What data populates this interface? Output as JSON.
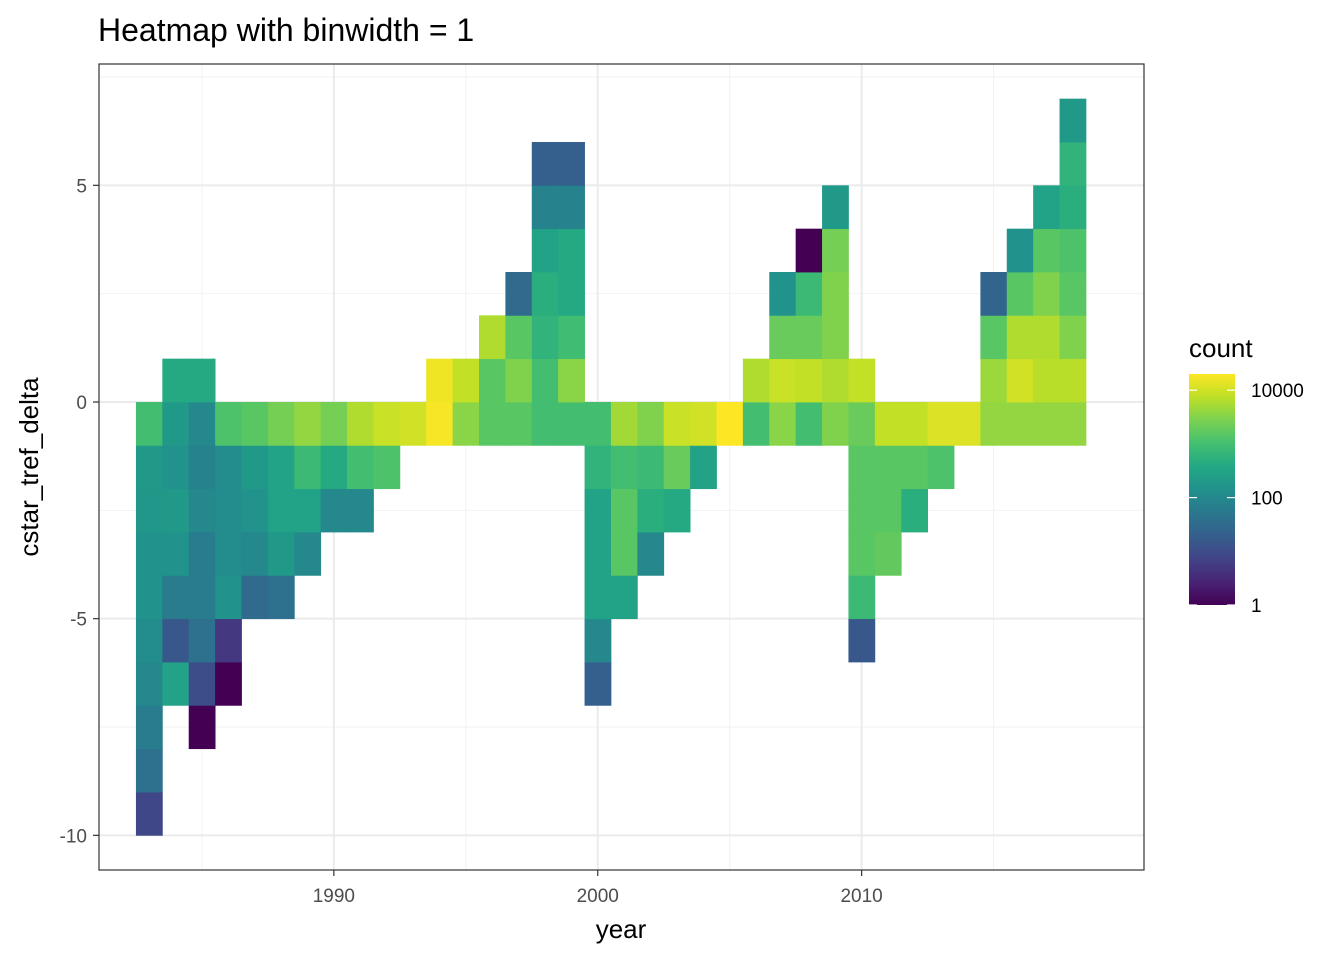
{
  "chart_data": {
    "type": "heatmap",
    "title": "Heatmap with binwidth = 1",
    "xlabel": "year",
    "ylabel": "cstar_tref_delta",
    "xlim": [
      1981.1,
      2020.7
    ],
    "ylim": [
      -10.8,
      7.8
    ],
    "x_ticks": [
      {
        "value": 1990,
        "label": "1990"
      },
      {
        "value": 2000,
        "label": "2000"
      },
      {
        "value": 2010,
        "label": "2010"
      }
    ],
    "y_ticks": [
      {
        "value": 5,
        "label": "5"
      },
      {
        "value": 0,
        "label": "0"
      },
      {
        "value": -5,
        "label": "-5"
      },
      {
        "value": -10,
        "label": "-10"
      }
    ],
    "legend": {
      "title": "count",
      "position": "right",
      "scale": "log10",
      "range": [
        1,
        20000
      ],
      "breaks": [
        {
          "value": 10000,
          "label": "10000"
        },
        {
          "value": 100,
          "label": "100"
        },
        {
          "value": 1,
          "label": "1"
        }
      ],
      "colormap": "viridis"
    },
    "binwidth": 1,
    "bin_x_start": 1982.5,
    "bin_y_start": -10,
    "columns": [
      {
        "x": 1982.5,
        "y0": -10,
        "counts": [
          8,
          40,
          60,
          100,
          120,
          150,
          150,
          180,
          200,
          1000
        ]
      },
      {
        "x": 1983.5,
        "y0": -7,
        "counts": [
          300,
          15,
          60,
          150,
          200,
          150,
          200,
          400
        ]
      },
      {
        "x": 1984.5,
        "y0": -8,
        "counts": [
          1,
          10,
          40,
          60,
          60,
          100,
          80,
          100,
          400
        ]
      },
      {
        "x": 1985.5,
        "y0": -7,
        "counts": [
          1,
          5,
          150,
          120,
          120,
          120,
          1200
        ]
      },
      {
        "x": 1986.5,
        "y0": -5,
        "counts": [
          30,
          100,
          150,
          200,
          1500
        ]
      },
      {
        "x": 1987.5,
        "y0": -5,
        "counts": [
          40,
          200,
          300,
          300,
          2500
        ]
      },
      {
        "x": 1988.5,
        "y0": -4,
        "counts": [
          100,
          300,
          800,
          4000
        ]
      },
      {
        "x": 1989.5,
        "y0": -3,
        "counts": [
          100,
          400,
          2500
        ]
      },
      {
        "x": 1990.5,
        "y0": -3,
        "counts": [
          100,
          1000,
          6000
        ]
      },
      {
        "x": 1991.5,
        "y0": -2,
        "counts": [
          1200,
          9000
        ]
      },
      {
        "x": 1992.5,
        "y0": -1,
        "counts": [
          10000
        ]
      },
      {
        "x": 1993.5,
        "y0": -1,
        "counts": [
          18000,
          16000
        ]
      },
      {
        "x": 1994.5,
        "y0": -1,
        "counts": [
          3500,
          8000
        ]
      },
      {
        "x": 1995.5,
        "y0": -1,
        "counts": [
          1500,
          1500,
          6000
        ]
      },
      {
        "x": 1996.5,
        "y0": -1,
        "counts": [
          1500,
          3000,
          1500,
          30
        ]
      },
      {
        "x": 1997.5,
        "y0": -1,
        "counts": [
          1000,
          1000,
          600,
          500,
          300,
          80,
          20
        ]
      },
      {
        "x": 1998.5,
        "y0": -1,
        "counts": [
          1000,
          3500,
          900,
          400,
          400,
          80,
          20
        ]
      },
      {
        "x": 1999.5,
        "y0": -7,
        "counts": [
          20,
          100,
          300,
          300,
          300,
          600,
          1000
        ]
      },
      {
        "x": 2000.5,
        "y0": -5,
        "counts": [
          300,
          1500,
          1500,
          1000,
          5000
        ]
      },
      {
        "x": 2001.5,
        "y0": -4,
        "counts": [
          100,
          500,
          800,
          3000
        ]
      },
      {
        "x": 2002.5,
        "y0": -3,
        "counts": [
          400,
          2000,
          9000
        ]
      },
      {
        "x": 2003.5,
        "y0": -2,
        "counts": [
          300,
          10000
        ]
      },
      {
        "x": 2004.5,
        "y0": -1,
        "counts": [
          20000
        ]
      },
      {
        "x": 2005.5,
        "y0": -1,
        "counts": [
          1000,
          6000
        ]
      },
      {
        "x": 2006.5,
        "y0": -1,
        "counts": [
          3500,
          9000,
          2000,
          150
        ]
      },
      {
        "x": 2007.5,
        "y0": -1,
        "counts": [
          1000,
          8000,
          2000,
          800,
          1
        ]
      },
      {
        "x": 2008.5,
        "y0": -1,
        "counts": [
          3000,
          6000,
          3000,
          3000,
          2500,
          200
        ]
      },
      {
        "x": 2009.5,
        "y0": -6,
        "counts": [
          15,
          800,
          1500,
          1500,
          1500,
          2000,
          8000
        ]
      },
      {
        "x": 2010.5,
        "y0": -4,
        "counts": [
          1800,
          1500,
          1500,
          8000
        ]
      },
      {
        "x": 2011.5,
        "y0": -3,
        "counts": [
          500,
          1500,
          8000
        ]
      },
      {
        "x": 2012.5,
        "y0": -2,
        "counts": [
          1200,
          12000
        ]
      },
      {
        "x": 2013.5,
        "y0": -1,
        "counts": [
          12000
        ]
      },
      {
        "x": 2014.5,
        "y0": -1,
        "counts": [
          4000,
          4500,
          1500,
          25
        ]
      },
      {
        "x": 2015.5,
        "y0": -1,
        "counts": [
          4000,
          10000,
          6000,
          1500,
          150
        ]
      },
      {
        "x": 2016.5,
        "y0": -1,
        "counts": [
          4000,
          7000,
          6000,
          3000,
          1500,
          300
        ]
      },
      {
        "x": 2017.5,
        "y0": -1,
        "counts": [
          4000,
          7000,
          3000,
          1500,
          1200,
          500,
          600,
          200
        ]
      }
    ]
  }
}
